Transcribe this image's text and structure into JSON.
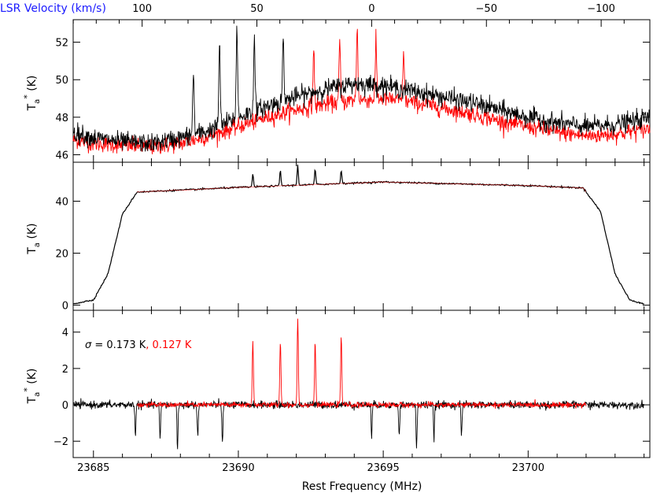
{
  "velocity_axis": {
    "label": "LSR Velocity (km/s)",
    "ticks": [
      "100",
      "50",
      "0",
      "−50",
      "−100"
    ],
    "tick_values": [
      100,
      50,
      0,
      -50,
      -100
    ],
    "label_color": "#1a1aff"
  },
  "frequency_axis": {
    "label": "Rest Frequency (MHz)",
    "ticks": [
      "23685",
      "23690",
      "23695",
      "23700"
    ],
    "tick_values": [
      23685,
      23690,
      23695,
      23700
    ],
    "xlim": [
      23684.3,
      23704.2
    ]
  },
  "colors": {
    "black": "#000000",
    "red": "#ff0000"
  },
  "chart_data": [
    {
      "type": "line",
      "panel": "top",
      "ylabel": "Ta* (K)",
      "ylim": [
        45.6,
        53.2
      ],
      "y_ticks": [
        46,
        48,
        50,
        52
      ],
      "y_tick_labels": [
        "46",
        "48",
        "50",
        "52"
      ],
      "x": [
        23684.3,
        23685,
        23686,
        23687,
        23688,
        23689,
        23690,
        23691,
        23692,
        23693,
        23694,
        23695,
        23696,
        23697,
        23698,
        23699,
        23700,
        23701,
        23702,
        23703,
        23704.2
      ],
      "series": [
        {
          "color": "#000000",
          "noise": 0.45,
          "values": [
            47.2,
            46.9,
            46.7,
            46.6,
            46.9,
            47.3,
            48.0,
            48.6,
            49.1,
            49.5,
            49.8,
            49.7,
            49.4,
            49.1,
            48.8,
            48.4,
            48.0,
            47.7,
            47.5,
            47.6,
            48.0
          ],
          "peaks": [
            {
              "x": 23688.45,
              "height": 50.4
            },
            {
              "x": 23689.35,
              "height": 51.9
            },
            {
              "x": 23689.95,
              "height": 52.8
            },
            {
              "x": 23690.55,
              "height": 52.2
            },
            {
              "x": 23691.55,
              "height": 52.2
            }
          ]
        },
        {
          "color": "#ff0000",
          "noise": 0.4,
          "values": [
            46.8,
            46.6,
            46.5,
            46.4,
            46.6,
            47.0,
            47.5,
            48.0,
            48.4,
            48.7,
            48.9,
            49.0,
            48.8,
            48.5,
            48.2,
            47.8,
            47.5,
            47.2,
            47.0,
            47.1,
            47.4
          ],
          "peaks": [
            {
              "x": 23692.6,
              "height": 51.6
            },
            {
              "x": 23693.5,
              "height": 52.0
            },
            {
              "x": 23694.1,
              "height": 52.8
            },
            {
              "x": 23694.75,
              "height": 52.0
            },
            {
              "x": 23695.7,
              "height": 51.6
            }
          ]
        }
      ]
    },
    {
      "type": "line",
      "panel": "middle",
      "ylabel": "Ta (K)",
      "ylim": [
        -2,
        55
      ],
      "y_ticks": [
        0,
        20,
        40
      ],
      "y_tick_labels": [
        "0",
        "20",
        "40"
      ],
      "x": [
        23684.3,
        23685,
        23685.5,
        23686,
        23686.5,
        23690,
        23695,
        23700,
        23701.9,
        23702.5,
        23703,
        23703.5,
        23704.0
      ],
      "series": [
        {
          "color": "#000000",
          "values": [
            0.5,
            2,
            12,
            35,
            43.5,
            45.3,
            47.4,
            46.0,
            45.1,
            36,
            12,
            2,
            0.5
          ],
          "peaks": [
            {
              "x": 23690.5,
              "height": 50.4
            },
            {
              "x": 23691.45,
              "height": 51.8
            },
            {
              "x": 23692.05,
              "height": 54.0
            },
            {
              "x": 23692.65,
              "height": 52.3
            },
            {
              "x": 23693.55,
              "height": 51.9
            }
          ]
        },
        {
          "color": "#ff0000",
          "values_note_range": [
            23686.5,
            23702.0
          ]
        }
      ]
    },
    {
      "type": "line",
      "panel": "bottom",
      "ylabel": "Ta* (K)",
      "ylim": [
        -2.9,
        5.2
      ],
      "y_ticks": [
        -2,
        0,
        2,
        4
      ],
      "y_tick_labels": [
        "−2",
        "0",
        "2",
        "4"
      ],
      "annotation": {
        "sigma_symbol": "σ",
        "equals": " = 0.173 K",
        "red_part": ", 0.127 K"
      },
      "series": [
        {
          "color": "#000000",
          "noise": 0.17,
          "x_range": [
            23684.3,
            23704.0
          ],
          "dips": [
            {
              "x": 23686.45,
              "depth": -1.7
            },
            {
              "x": 23687.3,
              "depth": -2.0
            },
            {
              "x": 23687.9,
              "depth": -2.5
            },
            {
              "x": 23688.6,
              "depth": -1.8
            },
            {
              "x": 23689.45,
              "depth": -2.1
            },
            {
              "x": 23694.6,
              "depth": -1.8
            },
            {
              "x": 23695.55,
              "depth": -1.8
            },
            {
              "x": 23696.15,
              "depth": -2.5
            },
            {
              "x": 23696.75,
              "depth": -2.0
            },
            {
              "x": 23697.7,
              "depth": -1.8
            }
          ]
        },
        {
          "color": "#ff0000",
          "noise": 0.13,
          "x_range": [
            23686.5,
            23702.0
          ],
          "peaks": [
            {
              "x": 23690.5,
              "height": 3.5
            },
            {
              "x": 23691.45,
              "height": 3.6
            },
            {
              "x": 23692.05,
              "height": 4.8
            },
            {
              "x": 23692.65,
              "height": 3.5
            },
            {
              "x": 23693.55,
              "height": 3.7
            }
          ]
        }
      ]
    }
  ]
}
